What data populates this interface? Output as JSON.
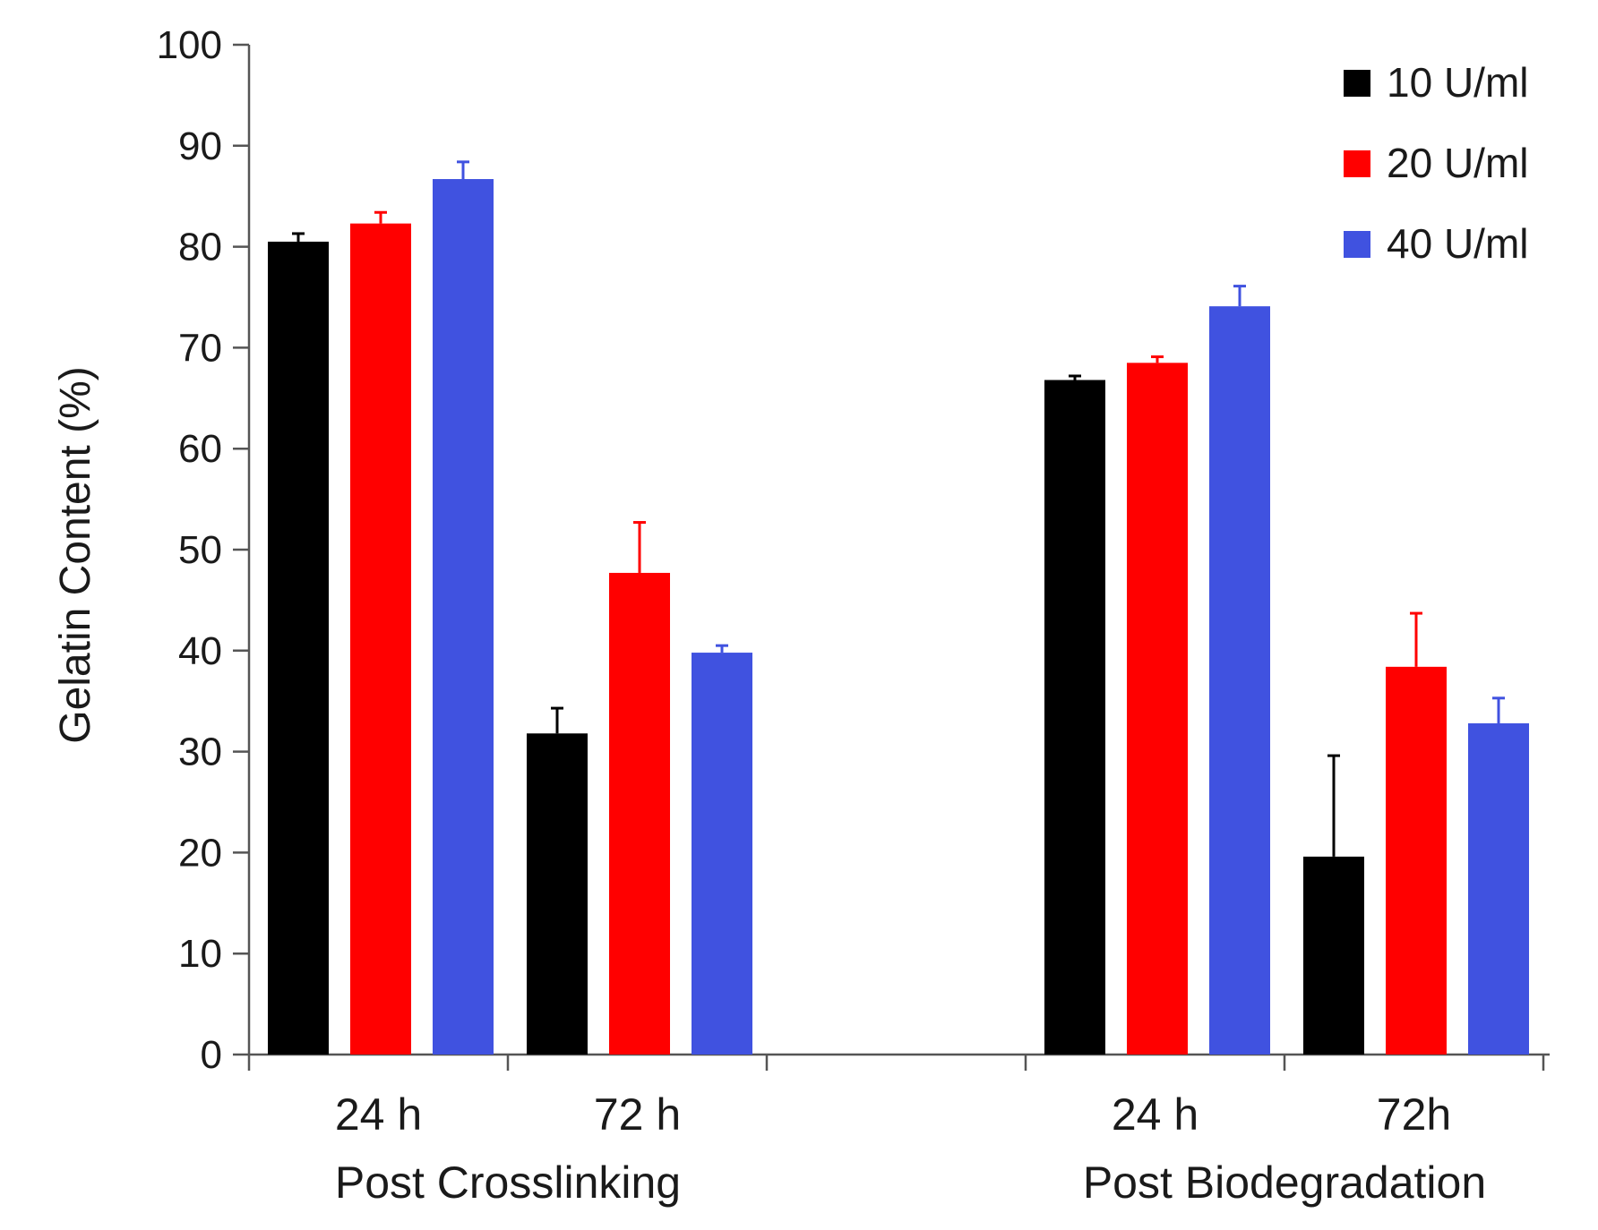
{
  "chart_data": {
    "type": "bar",
    "title": "",
    "xlabel": "",
    "ylabel": "Gelatin Content (%)",
    "ylim": [
      0,
      100
    ],
    "yticks": [
      0,
      10,
      20,
      30,
      40,
      50,
      60,
      70,
      80,
      90,
      100
    ],
    "grid": false,
    "legend_position": "top-right",
    "groups": [
      {
        "label": "Post Crosslinking",
        "categories": [
          "24 h",
          "72 h"
        ]
      },
      {
        "label": "",
        "categories": []
      },
      {
        "label": "Post Biodegradation",
        "categories": [
          "24 h",
          "72h"
        ]
      }
    ],
    "series": [
      {
        "name": "10 U/ml",
        "color": "#000000",
        "values": [
          80.5,
          31.8,
          66.8,
          19.6
        ],
        "errors": [
          0.8,
          2.5,
          0.4,
          10.0
        ]
      },
      {
        "name": "20 U/ml",
        "color": "#ff0000",
        "values": [
          82.3,
          47.7,
          68.5,
          38.4
        ],
        "errors": [
          1.1,
          5.0,
          0.6,
          5.3
        ]
      },
      {
        "name": "40 U/ml",
        "color": "#4052e0",
        "values": [
          86.7,
          39.8,
          74.1,
          32.8
        ],
        "errors": [
          1.7,
          0.7,
          2.0,
          2.5
        ]
      }
    ]
  }
}
